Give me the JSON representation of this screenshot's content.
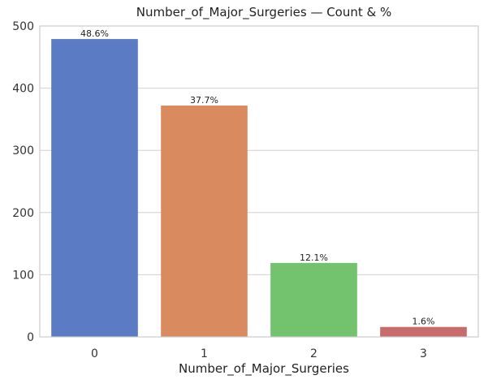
{
  "chart_data": {
    "type": "bar",
    "title": "Number_of_Major_Surgeries — Count & %",
    "xlabel": "Number_of_Major_Surgeries",
    "ylabel": "",
    "categories": [
      "0",
      "1",
      "2",
      "3"
    ],
    "values": [
      479,
      372,
      119,
      16
    ],
    "labels": [
      "48.6%",
      "37.7%",
      "12.1%",
      "1.6%"
    ],
    "colors": [
      "#5b7bc4",
      "#d98a5e",
      "#72c26e",
      "#c86b6b"
    ],
    "ylim": [
      0,
      500
    ],
    "yticks": [
      0,
      100,
      200,
      300,
      400,
      500
    ],
    "grid": true
  }
}
